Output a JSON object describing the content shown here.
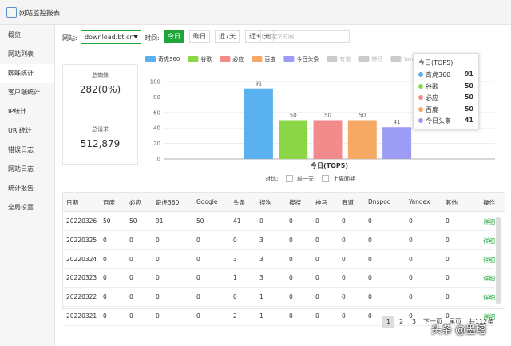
{
  "header": {
    "title": "网站监控报表"
  },
  "sidebar": {
    "items": [
      "概览",
      "网站列表",
      "蜘蛛统计",
      "客户端统计",
      "IP统计",
      "URI统计",
      "错误日志",
      "网站日志",
      "统计报告",
      "全局设置"
    ]
  },
  "filters": {
    "site_label": "网站:",
    "site": "download.bt.cn",
    "time_label": "时间:",
    "time_buttons": [
      "今日",
      "昨日",
      "近7天",
      "近30天"
    ],
    "custom_placeholder": "自定义时间"
  },
  "stats": {
    "spider_label": "总蜘蛛",
    "spider_value": "282(0%)",
    "request_label": "总请求",
    "request_value": "512,879"
  },
  "chart": {
    "type": "bar",
    "categories": [
      "今日(TOP5)"
    ],
    "series": [
      {
        "name": "奇虎360",
        "color": "#5ab1ef",
        "values": [
          91
        ]
      },
      {
        "name": "谷歌",
        "color": "#8bd646",
        "values": [
          50
        ]
      },
      {
        "name": "必应",
        "color": "#f28c8c",
        "values": [
          50
        ]
      },
      {
        "name": "百度",
        "color": "#f5a964",
        "values": [
          50
        ]
      },
      {
        "name": "今日头条",
        "color": "#9c9cf5",
        "values": [
          41
        ]
      }
    ],
    "legend_inactive": [
      "有道",
      "神马",
      "Yandex"
    ],
    "inactive_color": "#cccccc",
    "ylim": [
      0,
      100
    ],
    "yticks": [
      0,
      20,
      40,
      60,
      80,
      100
    ],
    "grid": true,
    "compare_label": "对比:",
    "compare_options": [
      "前一天",
      "上周同期"
    ]
  },
  "table": {
    "columns": [
      "日期",
      "百度",
      "必应",
      "奇虎360",
      "Google",
      "头条",
      "搜狗",
      "搜搜",
      "神马",
      "有道",
      "Dnspod",
      "Yandex",
      "其他",
      "操作"
    ],
    "rows": [
      [
        "20220326",
        50,
        50,
        91,
        50,
        41,
        0,
        0,
        0,
        0,
        0,
        0,
        0,
        "详细"
      ],
      [
        "20220325",
        0,
        0,
        0,
        0,
        0,
        3,
        0,
        0,
        0,
        0,
        0,
        0,
        "详细"
      ],
      [
        "20220324",
        0,
        0,
        0,
        0,
        3,
        3,
        0,
        0,
        0,
        0,
        0,
        0,
        "详细"
      ],
      [
        "20220323",
        0,
        0,
        0,
        0,
        1,
        3,
        0,
        0,
        0,
        0,
        0,
        0,
        "详细"
      ],
      [
        "20220322",
        0,
        0,
        0,
        0,
        0,
        1,
        0,
        0,
        0,
        0,
        0,
        0,
        "详细"
      ],
      [
        "20220321",
        0,
        0,
        0,
        0,
        2,
        1,
        0,
        0,
        0,
        0,
        0,
        0,
        "详细"
      ]
    ]
  },
  "pagination": {
    "pages": [
      1,
      2,
      3
    ],
    "next": "下一页",
    "last": "尾页",
    "total": "共112条"
  },
  "watermark": "头条 @墨塔"
}
